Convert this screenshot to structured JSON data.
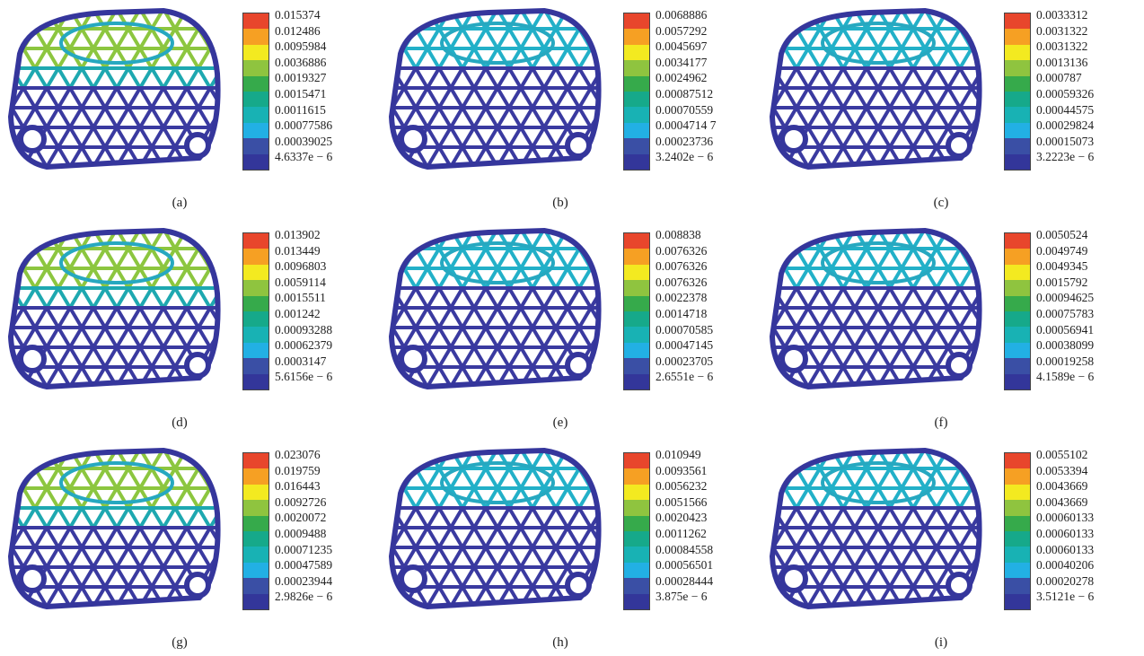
{
  "panels": [
    {
      "caption": "(a)",
      "labels": [
        "0.015374",
        "0.012486",
        "0.0095984",
        "0.0036886",
        "0.0019327",
        "0.0015471",
        "0.0011615",
        "0.00077586",
        "0.00039025",
        "4.6337e − 6"
      ]
    },
    {
      "caption": "(b)",
      "labels": [
        "0.0068886",
        "0.0057292",
        "0.0045697",
        "0.0034177",
        "0.0024962",
        "0.00087512",
        "0.00070559",
        "0.0004714 7",
        "0.00023736",
        "3.2402e − 6"
      ]
    },
    {
      "caption": "(c)",
      "labels": [
        "0.0033312",
        "0.0031322",
        "0.0031322",
        "0.0013136",
        "0.000787",
        "0.00059326",
        "0.00044575",
        "0.00029824",
        "0.00015073",
        "3.2223e − 6"
      ]
    },
    {
      "caption": "(d)",
      "labels": [
        "0.013902",
        "0.013449",
        "0.0096803",
        "0.0059114",
        "0.0015511",
        "0.001242",
        "0.00093288",
        "0.00062379",
        "0.0003147",
        "5.6156e − 6"
      ]
    },
    {
      "caption": "(e)",
      "labels": [
        "0.008838",
        "0.0076326",
        "0.0076326",
        "0.0076326",
        "0.0022378",
        "0.0014718",
        "0.00070585",
        "0.00047145",
        "0.00023705",
        "2.6551e − 6"
      ]
    },
    {
      "caption": "(f)",
      "labels": [
        "0.0050524",
        "0.0049749",
        "0.0049345",
        "0.0015792",
        "0.00094625",
        "0.00075783",
        "0.00056941",
        "0.00038099",
        "0.00019258",
        "4.1589e − 6"
      ]
    },
    {
      "caption": "(g)",
      "labels": [
        "0.023076",
        "0.019759",
        "0.016443",
        "0.0092726",
        "0.0020072",
        "0.0009488",
        "0.00071235",
        "0.00047589",
        "0.00023944",
        "2.9826e − 6"
      ]
    },
    {
      "caption": "(h)",
      "labels": [
        "0.010949",
        "0.0093561",
        "0.0056232",
        "0.0051566",
        "0.0020423",
        "0.0011262",
        "0.00084558",
        "0.00056501",
        "0.00028444",
        "3.875e − 6"
      ]
    },
    {
      "caption": "(i)",
      "labels": [
        "0.0055102",
        "0.0053394",
        "0.0043669",
        "0.0043669",
        "0.00060133",
        "0.00060133",
        "0.00060133",
        "0.00040206",
        "0.00020278",
        "3.5121e − 6"
      ]
    }
  ]
}
